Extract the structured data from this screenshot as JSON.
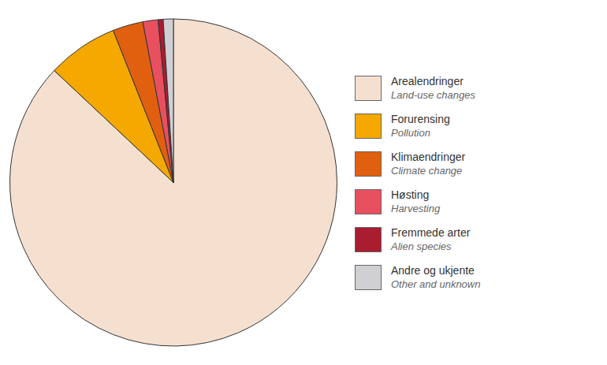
{
  "chart_data": {
    "type": "pie",
    "categories": [
      [
        "Arealendringer",
        "Land-use changes"
      ],
      [
        "Forurensing",
        "Pollution"
      ],
      [
        "Klimaendringer",
        "Climate change"
      ],
      [
        "Høsting",
        "Harvesting"
      ],
      [
        "Fremmede arter",
        "Alien species"
      ],
      [
        "Andre og ukjente",
        "Other and unknown"
      ]
    ],
    "values": [
      87,
      7,
      3,
      1.5,
      0.5,
      1
    ],
    "colors": [
      "#F5E0D0",
      "#F5A800",
      "#E06010",
      "#E85060",
      "#AA1C30",
      "#D0D0D4"
    ],
    "legend": "right"
  }
}
